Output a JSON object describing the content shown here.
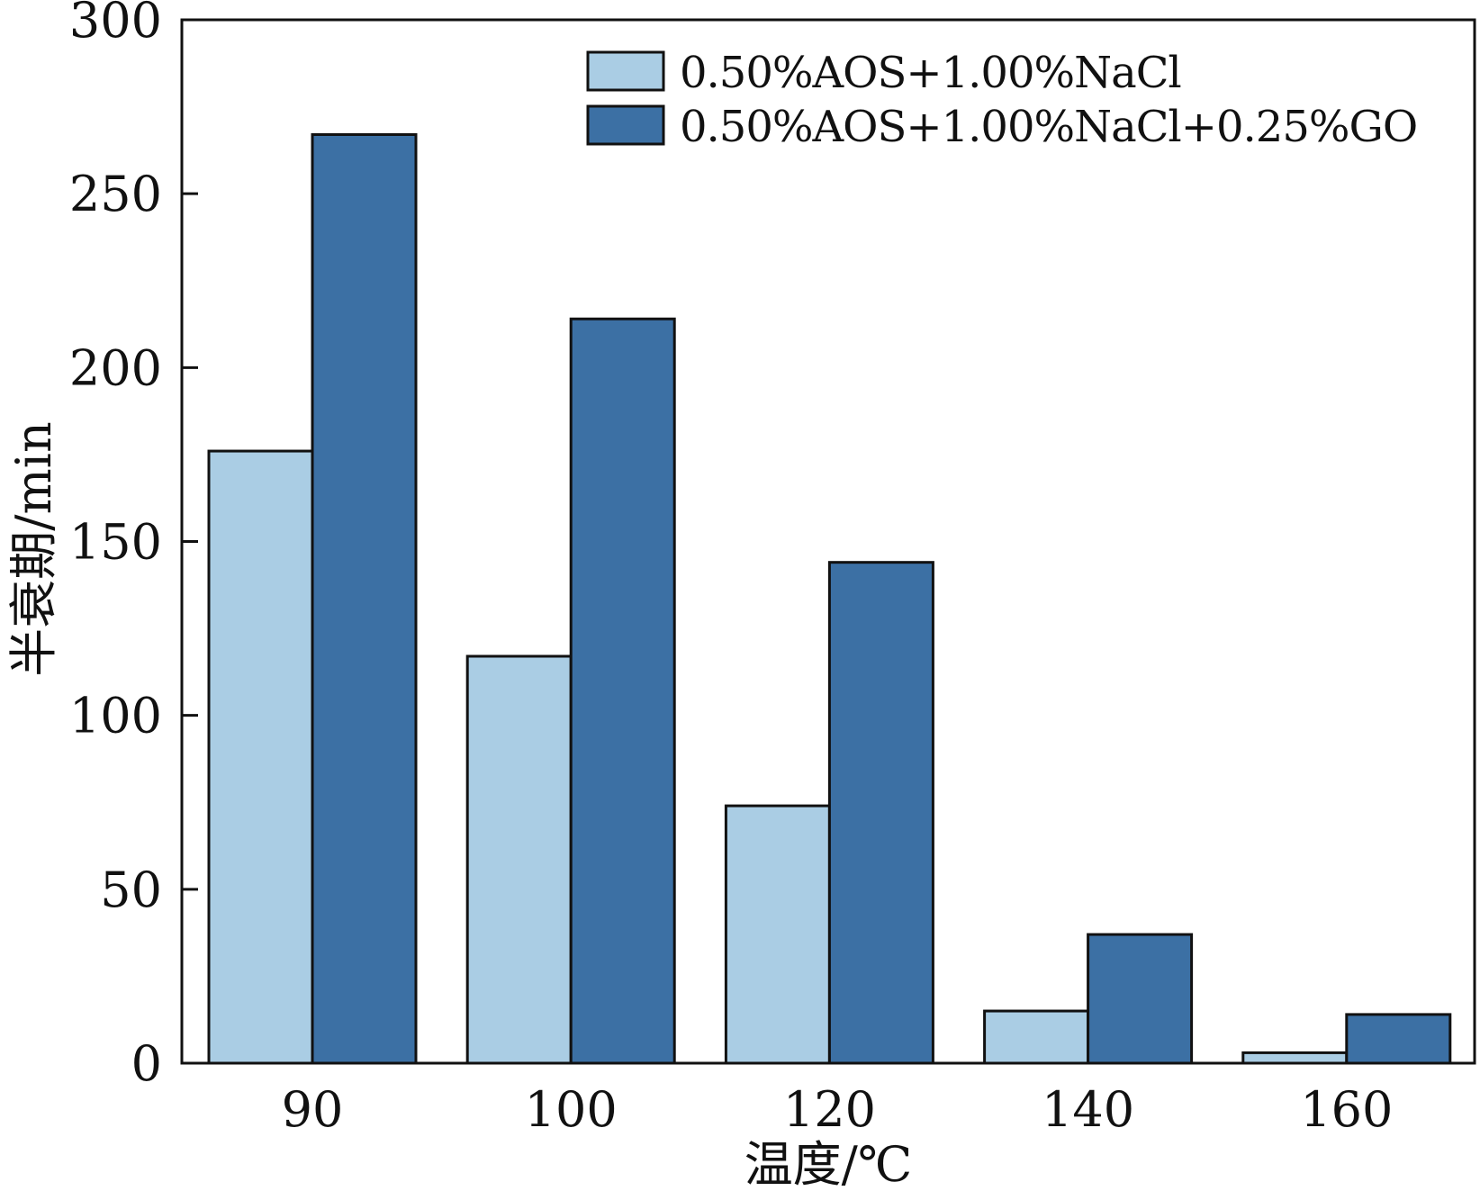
{
  "chart_data": {
    "type": "bar",
    "title": "",
    "xlabel": "温度/℃",
    "ylabel": "半衰期/min",
    "categories": [
      "90",
      "100",
      "120",
      "140",
      "160"
    ],
    "series": [
      {
        "name": "0.50%AOS+1.00%NaCl",
        "values": [
          176,
          117,
          74,
          15,
          3
        ],
        "color": "#aacde4"
      },
      {
        "name": "0.50%AOS+1.00%NaCl+0.25%GO",
        "values": [
          267,
          214,
          144,
          37,
          14
        ],
        "color": "#3c70a4"
      }
    ],
    "ylim": [
      0,
      300
    ],
    "yticks": [
      0,
      50,
      100,
      150,
      200,
      250,
      300
    ],
    "grid": false,
    "legend_position": "top-right"
  }
}
